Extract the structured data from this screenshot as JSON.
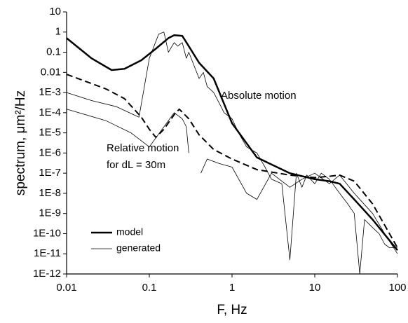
{
  "chart_data": {
    "type": "line",
    "xlabel": "F, Hz",
    "ylabel": "spectrum, μm²/Hz",
    "xscale": "log",
    "yscale": "log",
    "xlim": [
      0.01,
      100
    ],
    "ylim": [
      1e-12,
      10
    ],
    "xticks": [
      0.01,
      0.1,
      1,
      10,
      100
    ],
    "yticks": [
      10,
      1,
      0.1,
      0.01,
      {
        "value": 0.001,
        "label": "1E-3"
      },
      {
        "value": 0.0001,
        "label": "1E-4"
      },
      {
        "value": 1e-05,
        "label": "1E-5"
      },
      {
        "value": 1e-06,
        "label": "1E-6"
      },
      {
        "value": 1e-07,
        "label": "1E-7"
      },
      {
        "value": 1e-08,
        "label": "1E-8"
      },
      {
        "value": 1e-09,
        "label": "1E-9"
      },
      {
        "value": 1e-10,
        "label": "1E-10"
      },
      {
        "value": 1e-11,
        "label": "1E-11"
      },
      {
        "value": 1e-12,
        "label": "1E-12"
      }
    ],
    "legend": "lower left",
    "annotations": [
      "Absolute motion",
      "Relative motion",
      "for dL = 30m"
    ],
    "series": [
      {
        "name": "model",
        "color": "#000000",
        "width": 2.5,
        "dash": false,
        "x": [
          0.01,
          0.02,
          0.035,
          0.05,
          0.08,
          0.12,
          0.17,
          0.2,
          0.25,
          0.3,
          0.4,
          0.6,
          1,
          2,
          5,
          10,
          15,
          20,
          30,
          50,
          100
        ],
        "values": [
          0.5,
          0.05,
          0.013,
          0.015,
          0.04,
          0.15,
          0.5,
          0.7,
          0.65,
          0.2,
          0.03,
          0.005,
          3e-05,
          6e-07,
          1e-07,
          5e-08,
          4e-08,
          3e-08,
          5e-09,
          5e-10,
          1.5e-11
        ]
      },
      {
        "name": "generated",
        "color": "#000000",
        "width": 0.8,
        "dash": false,
        "x": [
          0.01,
          0.02,
          0.04,
          0.075,
          0.1,
          0.13,
          0.15,
          0.17,
          0.2,
          0.22,
          0.25,
          0.28,
          0.3,
          0.35,
          0.4,
          0.45,
          0.5,
          0.6,
          0.7,
          0.8,
          1,
          1.2,
          1.5,
          2,
          2.5,
          3,
          4,
          5,
          6,
          7,
          8,
          10,
          12,
          15,
          20,
          25,
          30,
          35,
          40,
          50,
          60,
          70,
          80,
          100
        ],
        "values": [
          0.001,
          0.0004,
          0.0002,
          6e-05,
          0.05,
          0.8,
          1,
          0.1,
          0.3,
          0.2,
          0.3,
          0.05,
          0.1,
          0.02,
          0.005,
          0.01,
          0.002,
          0.001,
          0.0003,
          0.0001,
          5e-05,
          1e-05,
          2e-06,
          1e-06,
          2e-07,
          5e-08,
          3e-08,
          5e-12,
          1e-07,
          2e-08,
          8e-08,
          3e-08,
          1e-07,
          5e-08,
          1e-08,
          3e-09,
          1e-09,
          1e-12,
          5e-10,
          2e-10,
          1e-10,
          3e-11,
          2e-11,
          2e-11
        ]
      },
      {
        "color": "#000000",
        "width": 2,
        "dash": true,
        "x": [
          0.01,
          0.03,
          0.05,
          0.08,
          0.1,
          0.12,
          0.15,
          0.2,
          0.23,
          0.3,
          0.4,
          0.6,
          1,
          2,
          5,
          10,
          15,
          20,
          30,
          50,
          100
        ],
        "values": [
          0.008,
          0.0015,
          0.0005,
          6e-05,
          1.5e-05,
          6e-06,
          1.5e-05,
          8e-05,
          0.00015,
          5e-05,
          8e-06,
          1.5e-06,
          5e-07,
          1.5e-07,
          8e-08,
          6e-08,
          7e-08,
          8e-08,
          4e-08,
          3e-09,
          2e-11
        ]
      },
      {
        "color": "#000000",
        "width": 0.8,
        "dash": false,
        "x": [
          0.01,
          0.03,
          0.06,
          0.1,
          0.15,
          0.2,
          0.25,
          0.28,
          0.3,
          0.35,
          0.42,
          0.5,
          0.7,
          1,
          1.5,
          2,
          3,
          5,
          7,
          10,
          15,
          20,
          30,
          50,
          70,
          100
        ],
        "values": [
          0.00015,
          4e-05,
          1e-05,
          2e-06,
          2e-05,
          0.0001,
          5e-05,
          2e-05,
          1e-06,
          null,
          1e-07,
          5e-07,
          3e-07,
          2e-07,
          1e-08,
          5e-09,
          1e-07,
          2e-08,
          5e-08,
          1e-07,
          3e-08,
          8e-08,
          1e-08,
          1e-09,
          1e-10,
          1e-11
        ]
      }
    ]
  }
}
